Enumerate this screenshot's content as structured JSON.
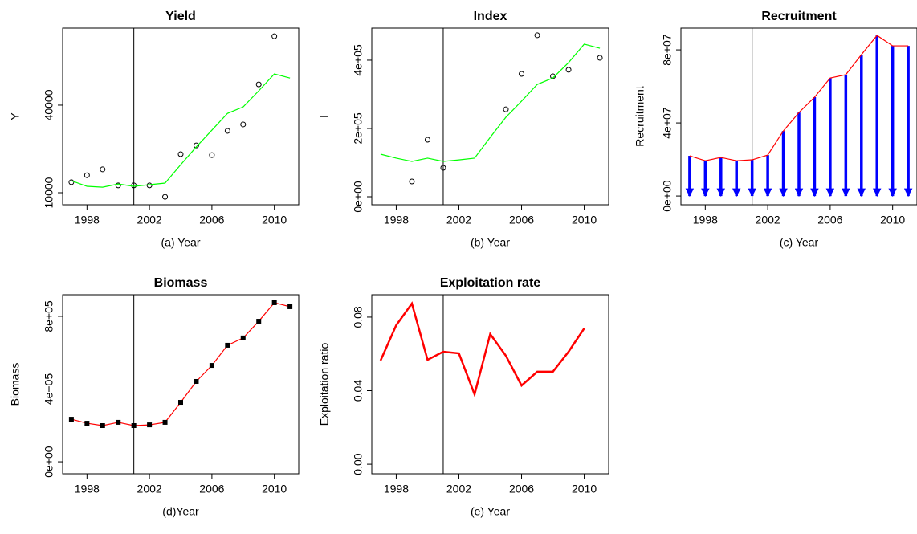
{
  "chart_data": [
    {
      "type": "line",
      "title": "Yield",
      "xlabel": "(a) Year",
      "ylabel": "Y",
      "x": [
        1997,
        1998,
        1999,
        2000,
        2001,
        2002,
        2003,
        2004,
        2005,
        2006,
        2007,
        2008,
        2009,
        2010,
        2011
      ],
      "xlim": [
        1996.44,
        2011.56
      ],
      "xticks": [
        1998,
        2002,
        2006,
        2010
      ],
      "ylim": [
        5875,
        66400
      ],
      "yticks": [
        10000,
        40000
      ],
      "vline": 2001,
      "series": [
        {
          "style": "points",
          "color": "#000000",
          "values": [
            13600,
            16000,
            18000,
            12500,
            12500,
            12500,
            8600,
            23200,
            26200,
            22900,
            31200,
            33400,
            47100,
            63600,
            null
          ]
        },
        {
          "style": "line",
          "color": "#00ff00",
          "values": [
            14100,
            12200,
            11900,
            13000,
            12200,
            12750,
            13300,
            19600,
            25700,
            31450,
            37200,
            39400,
            44900,
            50700,
            49300
          ]
        }
      ]
    },
    {
      "type": "line",
      "title": "Index",
      "xlabel": "(b) Year",
      "ylabel": "I",
      "x": [
        1997,
        1998,
        1999,
        2000,
        2001,
        2002,
        2003,
        2004,
        2005,
        2006,
        2007,
        2008,
        2009,
        2010,
        2011
      ],
      "xlim": [
        1996.44,
        2011.56
      ],
      "xticks": [
        1998,
        2002,
        2006,
        2010
      ],
      "ylim": [
        -23500,
        494000
      ],
      "yticks": [
        {
          "value": 0,
          "label": "0e+00"
        },
        {
          "value": 200000,
          "label": "2e+05"
        },
        {
          "value": 400000,
          "label": "4e+05"
        }
      ],
      "vline": 2001,
      "series": [
        {
          "style": "points",
          "color": "#000000",
          "values": [
            null,
            null,
            44700,
            167000,
            84700,
            null,
            null,
            null,
            256000,
            360000,
            473000,
            353000,
            372000,
            null,
            407000
          ]
        },
        {
          "style": "line",
          "color": "#00ff00",
          "values": [
            124700,
            113000,
            103500,
            113000,
            103500,
            108000,
            113000,
            174000,
            233000,
            280000,
            329000,
            348000,
            393000,
            447000,
            435000
          ]
        }
      ]
    },
    {
      "type": "line",
      "title": "Recruitment",
      "xlabel": "(c) Year",
      "ylabel": "Recruitment",
      "x": [
        1997,
        1998,
        1999,
        2000,
        2001,
        2002,
        2003,
        2004,
        2005,
        2006,
        2007,
        2008,
        2009,
        2010,
        2011
      ],
      "xlim": [
        1996.44,
        2011.56
      ],
      "xticks": [
        1998,
        2002,
        2006,
        2010
      ],
      "ylim": [
        -4800000,
        91900000
      ],
      "yticks": [
        {
          "value": 0,
          "label": "0e+00"
        },
        {
          "value": 40000000,
          "label": "4e+07"
        },
        {
          "value": 80000000,
          "label": "8e+07"
        }
      ],
      "vline": 2001,
      "series": [
        {
          "style": "arrows-line",
          "color": "#ff0000",
          "arrow_color": "#0000ff",
          "values": [
            22000000,
            19300000,
            21100000,
            19300000,
            19800000,
            22400000,
            35600000,
            45700000,
            54100000,
            64600000,
            66400000,
            77400000,
            87900000,
            82200000,
            82200000
          ]
        }
      ]
    },
    {
      "type": "line",
      "title": "Biomass",
      "xlabel": "(d)Year",
      "ylabel": "Biomass",
      "x": [
        1997,
        1998,
        1999,
        2000,
        2001,
        2002,
        2003,
        2004,
        2005,
        2006,
        2007,
        2008,
        2009,
        2010,
        2011
      ],
      "xlim": [
        1996.44,
        2011.56
      ],
      "xticks": [
        1998,
        2002,
        2006,
        2010
      ],
      "ylim": [
        -66000,
        919000
      ],
      "yticks": [
        {
          "value": 0,
          "label": "0e+00"
        },
        {
          "value": 400000,
          "label": "4e+05"
        },
        {
          "value": 800000,
          "label": "8e+05"
        }
      ],
      "vline": 2001,
      "series": [
        {
          "style": "line-squares",
          "color": "#ff0000",
          "marker_color": "#000000",
          "values": [
            234000,
            212000,
            199000,
            217000,
            199000,
            203000,
            217000,
            327000,
            442000,
            530000,
            641000,
            681000,
            773000,
            875000,
            853000
          ]
        }
      ]
    },
    {
      "type": "line",
      "title": "Exploitation rate",
      "xlabel": "(e) Year",
      "ylabel": "Exploitation ratio",
      "x": [
        1997,
        1998,
        1999,
        2000,
        2001,
        2002,
        2003,
        2004,
        2005,
        2006,
        2007,
        2008,
        2009,
        2010,
        2011
      ],
      "xlim": [
        1996.44,
        2011.56
      ],
      "xticks": [
        1998,
        2002,
        2006,
        2010
      ],
      "ylim": [
        -0.0052,
        0.0922
      ],
      "yticks": [
        {
          "value": 0,
          "label": "0.00"
        },
        {
          "value": 0.04,
          "label": "0.04"
        },
        {
          "value": 0.08,
          "label": "0.08"
        }
      ],
      "vline": 2001,
      "series": [
        {
          "style": "thick-line",
          "color": "#ff0000",
          "values": [
            0.0564,
            0.0756,
            0.0874,
            0.0568,
            0.0612,
            0.0603,
            0.038,
            0.0708,
            0.059,
            0.0428,
            0.0503,
            0.0503,
            0.0612,
            0.0739,
            null
          ]
        }
      ]
    }
  ]
}
